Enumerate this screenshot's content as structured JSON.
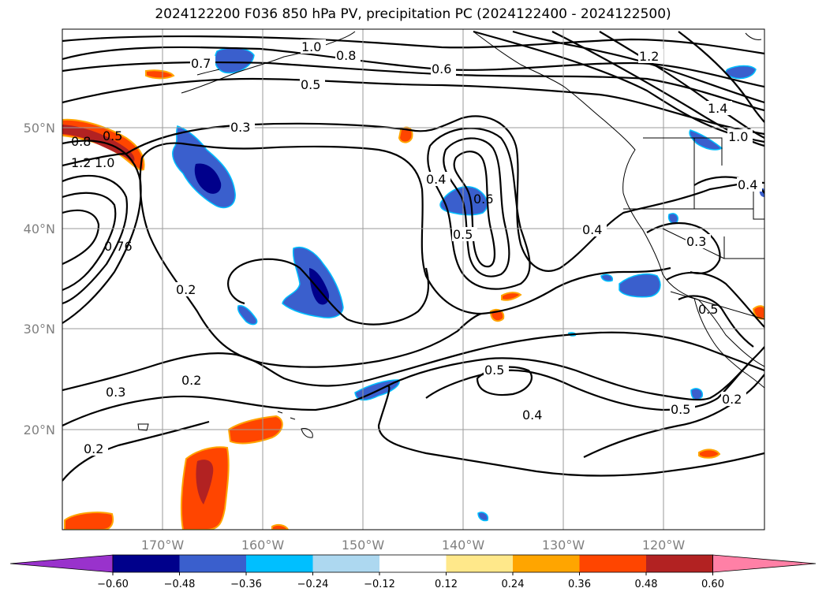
{
  "title": "2024122200 F036 850 hPa PV, precipitation PC (2024122400 - 2024122500)",
  "map": {
    "lon_labels": [
      "170°W",
      "160°W",
      "150°W",
      "140°W",
      "130°W",
      "120°W"
    ],
    "lat_labels": [
      "50°N",
      "40°N",
      "30°N",
      "20°N"
    ],
    "contour_labels": [
      {
        "text": "0.7"
      },
      {
        "text": "1.0"
      },
      {
        "text": "0.8"
      },
      {
        "text": "0.6"
      },
      {
        "text": "0.5"
      },
      {
        "text": "1.2"
      },
      {
        "text": "1.4"
      },
      {
        "text": "1.0"
      },
      {
        "text": "0.3"
      },
      {
        "text": "0.8"
      },
      {
        "text": "0.5"
      },
      {
        "text": "1.2"
      },
      {
        "text": "1.0"
      },
      {
        "text": "0.4"
      },
      {
        "text": "0.6"
      },
      {
        "text": "0.5"
      },
      {
        "text": "0.4"
      },
      {
        "text": "0.4"
      },
      {
        "text": "0.3"
      },
      {
        "text": "0.76"
      },
      {
        "text": "0.2"
      },
      {
        "text": "0.2"
      },
      {
        "text": "0.3"
      },
      {
        "text": "0.2"
      },
      {
        "text": "0.5"
      },
      {
        "text": "0.4"
      },
      {
        "text": "0.5"
      },
      {
        "text": "0.2"
      },
      {
        "text": "0.5"
      }
    ]
  },
  "colorbar": {
    "ticks": [
      "−0.60",
      "−0.48",
      "−0.36",
      "−0.24",
      "−0.12",
      "0.12",
      "0.24",
      "0.36",
      "0.48",
      "0.60"
    ],
    "colors": [
      "#9932cc",
      "#00008b",
      "#3a5fcd",
      "#00bfff",
      "#add8f0",
      "#ffffff",
      "#ffe88a",
      "#ffa500",
      "#ff4500",
      "#b22222",
      "#ff80a6"
    ]
  }
}
